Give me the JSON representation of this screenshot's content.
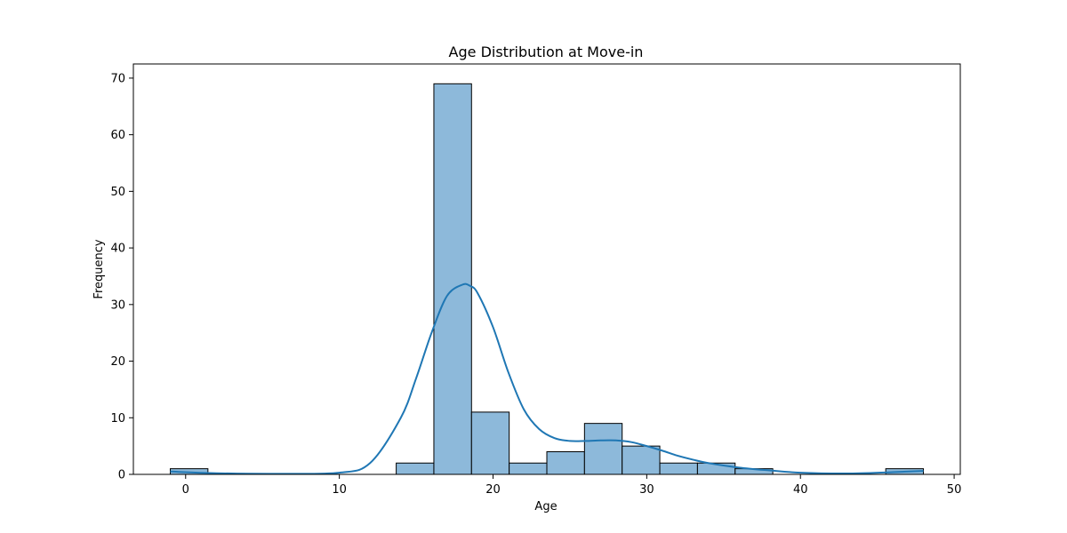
{
  "chart_data": {
    "type": "bar",
    "title": "Age Distribution at Move-in",
    "xlabel": "Age",
    "ylabel": "Frequency",
    "xlim": [
      -3.4,
      50.4
    ],
    "ylim": [
      0,
      72.5
    ],
    "xticks": [
      0,
      10,
      20,
      30,
      40,
      50
    ],
    "yticks": [
      0,
      10,
      20,
      30,
      40,
      50,
      60,
      70
    ],
    "bins": [
      {
        "x0": -1.0,
        "x1": 1.45,
        "count": 1
      },
      {
        "x0": 1.45,
        "x1": 3.9,
        "count": 0
      },
      {
        "x0": 3.9,
        "x1": 6.35,
        "count": 0
      },
      {
        "x0": 6.35,
        "x1": 8.8,
        "count": 0
      },
      {
        "x0": 8.8,
        "x1": 11.25,
        "count": 0
      },
      {
        "x0": 11.25,
        "x1": 13.7,
        "count": 0
      },
      {
        "x0": 13.7,
        "x1": 16.15,
        "count": 2
      },
      {
        "x0": 16.15,
        "x1": 18.6,
        "count": 69
      },
      {
        "x0": 18.6,
        "x1": 21.05,
        "count": 11
      },
      {
        "x0": 21.05,
        "x1": 23.5,
        "count": 2
      },
      {
        "x0": 23.5,
        "x1": 25.95,
        "count": 4
      },
      {
        "x0": 25.95,
        "x1": 28.4,
        "count": 9
      },
      {
        "x0": 28.4,
        "x1": 30.85,
        "count": 5
      },
      {
        "x0": 30.85,
        "x1": 33.3,
        "count": 2
      },
      {
        "x0": 33.3,
        "x1": 35.75,
        "count": 2
      },
      {
        "x0": 35.75,
        "x1": 38.2,
        "count": 1
      },
      {
        "x0": 38.2,
        "x1": 40.65,
        "count": 0
      },
      {
        "x0": 40.65,
        "x1": 43.1,
        "count": 0
      },
      {
        "x0": 43.1,
        "x1": 45.55,
        "count": 0
      },
      {
        "x0": 45.55,
        "x1": 48.0,
        "count": 1
      }
    ],
    "kde": {
      "x": [
        -1,
        2,
        6,
        10,
        12,
        14,
        15,
        16,
        17,
        18,
        18.5,
        19,
        20,
        21,
        22,
        23,
        24,
        25,
        26,
        27,
        28,
        29,
        30,
        31,
        32,
        33,
        34,
        36,
        38,
        40,
        43,
        46,
        48
      ],
      "y": [
        0.5,
        0.2,
        0.1,
        0.3,
        2,
        10,
        17,
        25,
        31.5,
        33.5,
        33.3,
        32,
        26,
        18,
        11.5,
        8,
        6.4,
        5.9,
        5.9,
        6,
        6,
        5.7,
        5,
        4.2,
        3.3,
        2.6,
        2,
        1.2,
        0.7,
        0.3,
        0.15,
        0.4,
        0.6
      ]
    },
    "grid": false,
    "legend": "none",
    "colors": {
      "bar_fill": "#8db9da",
      "bar_edge": "#000000",
      "kde_line": "#1f77b4"
    }
  }
}
